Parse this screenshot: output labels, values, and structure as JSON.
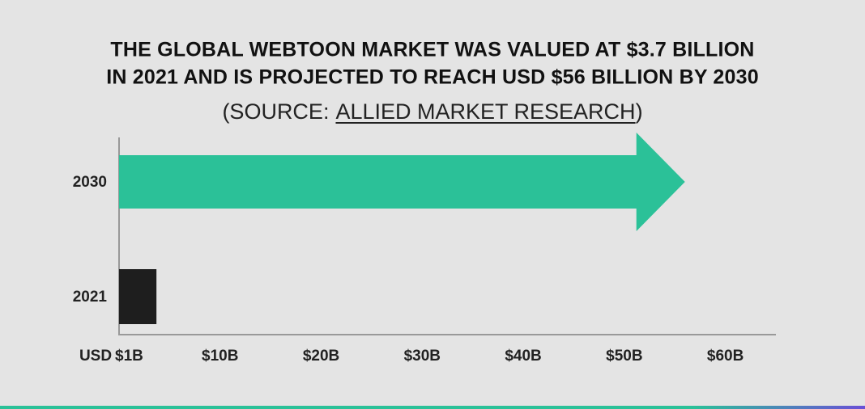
{
  "chart_data": {
    "type": "bar",
    "orientation": "horizontal",
    "title": [
      "THE GLOBAL WEBTOON MARKET WAS VALUED AT $3.7 BILLION",
      "IN 2021 AND IS PROJECTED TO REACH USD $56 BILLION BY 2030"
    ],
    "subtitle": {
      "prefix": "(SOURCE:",
      "source": "ALLIED MARKET RESEARCH",
      "suffix": ")"
    },
    "xlabel": "USD",
    "categories": [
      "2030",
      "2021"
    ],
    "values": [
      56,
      3.7
    ],
    "colors": [
      "#2bc198",
      "#1e1e1e"
    ],
    "xlim": [
      0,
      65
    ],
    "xticks": [
      {
        "value": 1,
        "label": "$1B"
      },
      {
        "value": 10,
        "label": "$10B"
      },
      {
        "value": 20,
        "label": "$20B"
      },
      {
        "value": 30,
        "label": "$30B"
      },
      {
        "value": 40,
        "label": "$40B"
      },
      {
        "value": 50,
        "label": "$50B"
      },
      {
        "value": 60,
        "label": "$60B"
      }
    ]
  }
}
